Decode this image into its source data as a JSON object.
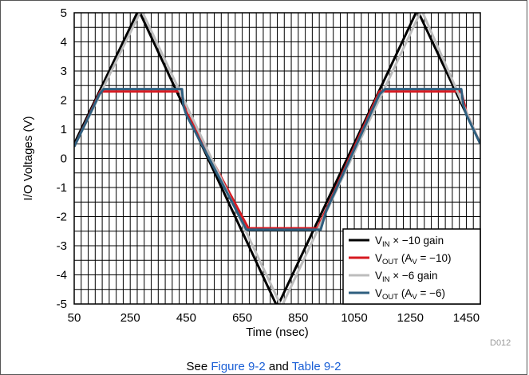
{
  "chart_data": {
    "type": "line",
    "xlabel": "Time (nsec)",
    "ylabel": "I/O Voltages (V)",
    "xlim": [
      50,
      1500
    ],
    "ylim": [
      -5,
      5
    ],
    "xticks": [
      50,
      250,
      450,
      650,
      850,
      1050,
      1250,
      1450
    ],
    "yticks": [
      -5,
      -4,
      -3,
      -2,
      -1,
      0,
      1,
      2,
      3,
      4,
      5
    ],
    "grid": true,
    "minor_x_step": 25,
    "minor_y_step": 0.5,
    "legend_position": "bottom-right",
    "series": [
      {
        "legend_main": "V",
        "legend_sub": "IN",
        "legend_rest": " × −10 gain",
        "color": "#000000",
        "x": [
          50,
          280,
          775,
          1275,
          1500
        ],
        "y": [
          0.5,
          5.1,
          -5.1,
          5.1,
          0.5
        ]
      },
      {
        "legend_main": "V",
        "legend_sub": "OUT",
        "legend_rest": " (A",
        "legend_sub2": "V",
        "legend_rest2": " = −10)",
        "color": "#d71920",
        "x": [
          50,
          143,
          430,
          450,
          672,
          918,
          950,
          1140,
          1432,
          1450,
          1500
        ],
        "y": [
          0.4,
          2.3,
          2.3,
          1.6,
          -2.4,
          -2.4,
          -1.75,
          2.3,
          2.3,
          1.6,
          0.5
        ]
      },
      {
        "legend_main": "V",
        "legend_sub": "IN",
        "legend_rest": " × −6 gain",
        "color": "#bdbdbd",
        "x": [
          50,
          290,
          790,
          1290,
          1500
        ],
        "y": [
          0.4,
          5.1,
          -5.1,
          5.1,
          0.5
        ]
      },
      {
        "legend_main": "V",
        "legend_sub": "OUT",
        "legend_rest": " (A",
        "legend_sub2": "V",
        "legend_rest2": " = −6)",
        "color": "#2f5f7f",
        "x": [
          50,
          140,
          155,
          435,
          440,
          450,
          665,
          930,
          950,
          1140,
          1160,
          1432,
          1440,
          1450,
          1500
        ],
        "y": [
          0.4,
          2.2,
          2.38,
          2.38,
          1.8,
          1.5,
          -2.45,
          -2.45,
          -1.8,
          2.2,
          2.38,
          2.38,
          1.8,
          1.5,
          0.5
        ]
      }
    ]
  },
  "figure_tag": "D012",
  "caption": {
    "prefix": "See ",
    "link1": "Figure 9-2",
    "middle": " and ",
    "link2": "Table 9-2"
  }
}
